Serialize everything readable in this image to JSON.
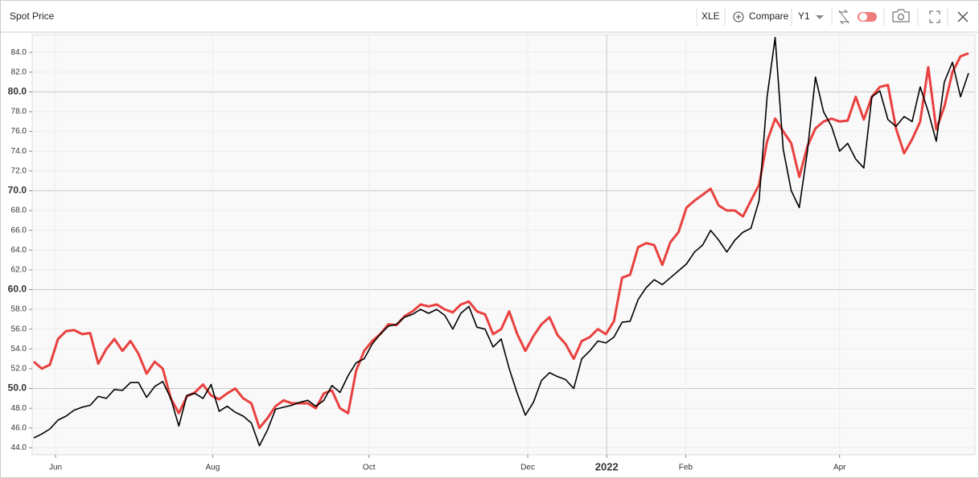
{
  "chart_data": {
    "type": "line",
    "title": "Spot Price",
    "toolbar": {
      "symbol": "XLE",
      "compare": "Compare",
      "range": "Y1"
    },
    "xlim": [
      0,
      116
    ],
    "xticks": [
      {
        "value": 2.7,
        "label": "Jun"
      },
      {
        "value": 22.2,
        "label": "Aug"
      },
      {
        "value": 41.6,
        "label": "Oct"
      },
      {
        "value": 61.3,
        "label": "Dec"
      },
      {
        "value": 71.1,
        "label": "2022"
      },
      {
        "value": 80.9,
        "label": "Feb"
      },
      {
        "value": 100,
        "label": "Apr"
      }
    ],
    "ylim": [
      43.3,
      85.8
    ],
    "yticks": [
      {
        "value": 44,
        "label": "44.0"
      },
      {
        "value": 46,
        "label": "46.0"
      },
      {
        "value": 48,
        "label": "48.0"
      },
      {
        "value": 50,
        "label": "50.0"
      },
      {
        "value": 52,
        "label": "52.0"
      },
      {
        "value": 54,
        "label": "54.0"
      },
      {
        "value": 56,
        "label": "56.0"
      },
      {
        "value": 58,
        "label": "58.0"
      },
      {
        "value": 60,
        "label": "60.0"
      },
      {
        "value": 62,
        "label": "62.0"
      },
      {
        "value": 64,
        "label": "64.0"
      },
      {
        "value": 66,
        "label": "66.0"
      },
      {
        "value": 68,
        "label": "68.0"
      },
      {
        "value": 70,
        "label": "70.0"
      },
      {
        "value": 72,
        "label": "72.0"
      },
      {
        "value": 74,
        "label": "74.0"
      },
      {
        "value": 76,
        "label": "76.0"
      },
      {
        "value": 78,
        "label": "78.0"
      },
      {
        "value": 80,
        "label": "80.0"
      },
      {
        "value": 82,
        "label": "82.0"
      },
      {
        "value": 84,
        "label": "84.0"
      }
    ],
    "major_every": 10,
    "grid": true,
    "series": [
      {
        "color": "#e8413f",
        "values": [
          52.7,
          52.0,
          52.4,
          55.0,
          55.8,
          55.9,
          55.5,
          55.6,
          52.5,
          54.0,
          55.0,
          53.8,
          54.8,
          53.5,
          51.5,
          52.7,
          52.0,
          49.0,
          47.5,
          49.2,
          49.6,
          50.4,
          49.3,
          48.9,
          49.5,
          50.0,
          49.0,
          48.5,
          46.0,
          47.0,
          48.2,
          48.8,
          48.5,
          48.5,
          48.5,
          48.0,
          49.5,
          49.8,
          48.0,
          47.5,
          51.8,
          53.8,
          54.8,
          55.5,
          56.5,
          56.4,
          57.3,
          57.8,
          58.5,
          58.3,
          58.5,
          58.0,
          57.7,
          58.5,
          58.8,
          57.8,
          57.5,
          55.5,
          56.0,
          57.8,
          55.5,
          53.8,
          55.3,
          56.5,
          57.2,
          55.4,
          54.5,
          53.0,
          54.8,
          55.2,
          56.0,
          55.5,
          56.8,
          61.2,
          61.5,
          64.3,
          64.7,
          64.5,
          62.5,
          64.8,
          65.8,
          68.3,
          69.0,
          69.6,
          70.2,
          68.5,
          68.0,
          68.0,
          67.4,
          69.0,
          70.6,
          75.0,
          77.3,
          76.0,
          74.8,
          71.4,
          74.5,
          76.3,
          77.0,
          77.3,
          77.0,
          77.1,
          79.5,
          77.2,
          79.5,
          80.5,
          80.7,
          76.3,
          73.8,
          75.2,
          77.0,
          82.5,
          76.2,
          78.5,
          82.0,
          83.6,
          83.9
        ]
      },
      {
        "color": "#000000",
        "values": [
          45.0,
          45.4,
          45.9,
          46.8,
          47.2,
          47.8,
          48.1,
          48.3,
          49.2,
          49.0,
          49.9,
          49.8,
          50.6,
          50.6,
          49.1,
          50.2,
          50.7,
          49.0,
          46.2,
          49.3,
          49.5,
          49.0,
          50.4,
          47.7,
          48.2,
          47.6,
          47.2,
          46.5,
          44.2,
          45.8,
          47.9,
          48.1,
          48.3,
          48.6,
          48.8,
          48.2,
          48.8,
          50.3,
          49.6,
          51.3,
          52.6,
          53.0,
          54.5,
          55.5,
          56.3,
          56.5,
          57.2,
          57.5,
          58.0,
          57.6,
          58.0,
          57.4,
          56.0,
          57.6,
          58.3,
          56.2,
          56.0,
          54.2,
          55.0,
          52.0,
          49.5,
          47.3,
          48.6,
          50.8,
          51.6,
          51.2,
          50.9,
          50.0,
          53.0,
          53.8,
          54.8,
          54.6,
          55.2,
          56.7,
          56.8,
          59.0,
          60.2,
          61.0,
          60.5,
          61.2,
          61.9,
          62.6,
          63.8,
          64.5,
          66.0,
          65.0,
          63.8,
          65.0,
          65.8,
          66.2,
          69.0,
          79.5,
          85.5,
          74.2,
          70.0,
          68.3,
          74.0,
          81.5,
          78.0,
          76.5,
          74.0,
          74.8,
          73.2,
          72.3,
          79.5,
          80.1,
          77.2,
          76.5,
          77.5,
          77.0,
          80.5,
          78.0,
          75.0,
          81.0,
          83.0,
          79.5,
          81.9
        ]
      }
    ]
  }
}
